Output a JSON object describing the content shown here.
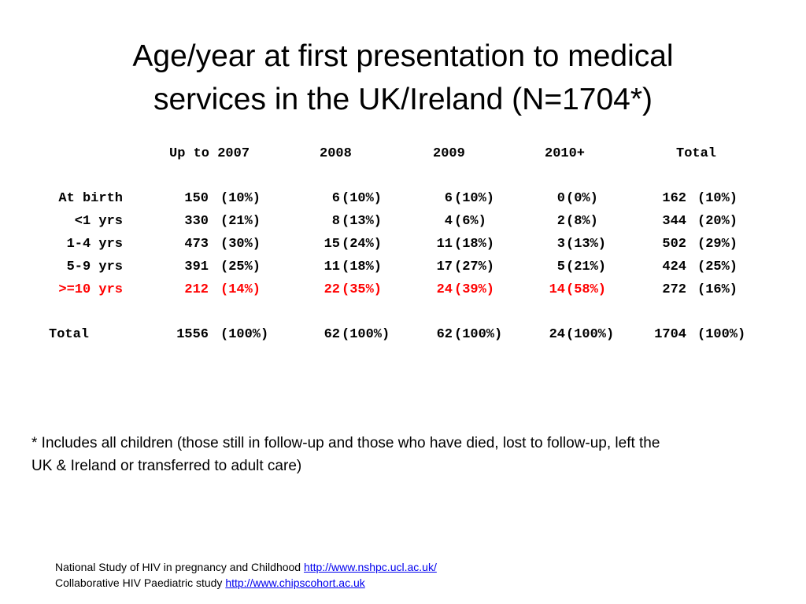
{
  "title": {
    "line1": "Age/year at first presentation to medical",
    "line2": "services in the UK/Ireland (N=1704*)"
  },
  "table": {
    "headers": [
      "Up to 2007",
      "2008",
      "2009",
      "2010+",
      "Total"
    ],
    "rows": [
      {
        "label": "At birth",
        "highlight": false,
        "cells": [
          [
            "150",
            "(10%)"
          ],
          [
            "6",
            "(10%)"
          ],
          [
            "6",
            "(10%)"
          ],
          [
            "0",
            "(0%)"
          ],
          [
            "162",
            "(10%)"
          ]
        ]
      },
      {
        "label": "<1 yrs",
        "highlight": false,
        "cells": [
          [
            "330",
            "(21%)"
          ],
          [
            "8",
            "(13%)"
          ],
          [
            "4",
            "(6%)"
          ],
          [
            "2",
            "(8%)"
          ],
          [
            "344",
            "(20%)"
          ]
        ]
      },
      {
        "label": "1-4 yrs",
        "highlight": false,
        "cells": [
          [
            "473",
            "(30%)"
          ],
          [
            "15",
            "(24%)"
          ],
          [
            "11",
            "(18%)"
          ],
          [
            "3",
            "(13%)"
          ],
          [
            "502",
            "(29%)"
          ]
        ]
      },
      {
        "label": "5-9 yrs",
        "highlight": false,
        "cells": [
          [
            "391",
            "(25%)"
          ],
          [
            "11",
            "(18%)"
          ],
          [
            "17",
            "(27%)"
          ],
          [
            "5",
            "(21%)"
          ],
          [
            "424",
            "(25%)"
          ]
        ]
      },
      {
        "label": ">=10 yrs",
        "highlight": true,
        "cells": [
          [
            "212",
            "(14%)"
          ],
          [
            "22",
            "(35%)"
          ],
          [
            "24",
            "(39%)"
          ],
          [
            "14",
            "(58%)"
          ],
          [
            "272",
            "(16%)"
          ]
        ]
      }
    ],
    "total_row": {
      "label": "Total",
      "cells": [
        [
          "1556",
          "(100%)"
        ],
        [
          "62",
          "(100%)"
        ],
        [
          "62",
          "(100%)"
        ],
        [
          "24",
          "(100%)"
        ],
        [
          "1704",
          "(100%)"
        ]
      ]
    },
    "highlight_color": "#ff0000"
  },
  "footnote": {
    "line1": "* Includes all children (those still in follow-up and those who have died, lost to follow-up, left the",
    "line2": "UK & Ireland or transferred to adult care)"
  },
  "sources": [
    {
      "text": "National Study of HIV in pregnancy and Childhood ",
      "link": "http://www.nshpc.ucl.ac.uk/"
    },
    {
      "text": "Collaborative HIV Paediatric study ",
      "link": "http://www.chipscohort.ac.uk"
    }
  ],
  "link_color": "#0000ee"
}
